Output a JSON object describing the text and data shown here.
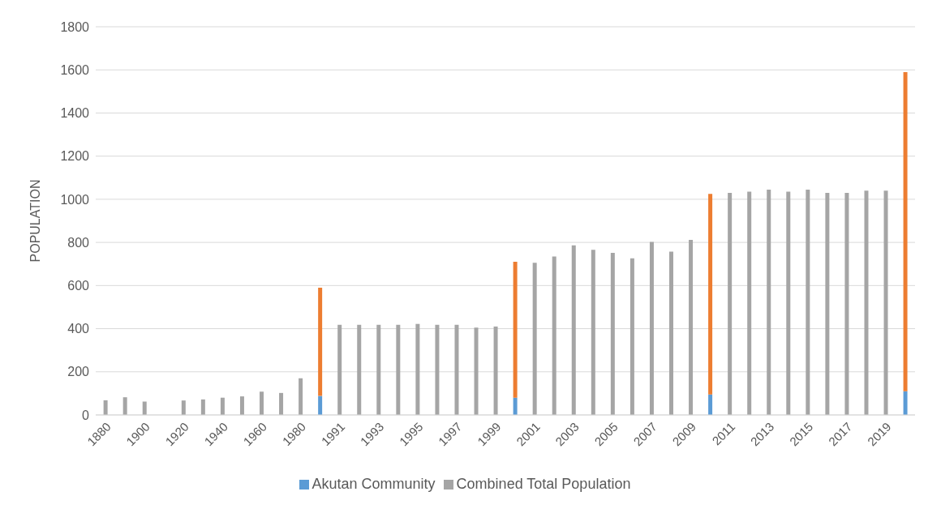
{
  "chart_data": {
    "type": "bar",
    "stacked": true,
    "ylabel": "POPULATION",
    "categories": [
      "1880",
      null,
      "1900",
      null,
      "1920",
      null,
      "1940",
      null,
      "1960",
      null,
      "1980",
      null,
      "1991",
      null,
      "1993",
      null,
      "1995",
      null,
      "1997",
      null,
      "1999",
      null,
      "2001",
      null,
      "2003",
      null,
      "2005",
      null,
      "2007",
      null,
      "2009",
      null,
      "2011",
      null,
      "2013",
      null,
      "2015",
      null,
      "2017",
      null,
      "2019",
      null
    ],
    "series": [
      {
        "name": "Akutan Community",
        "color": "#5b9bd5",
        "values": [
          null,
          null,
          null,
          null,
          null,
          null,
          null,
          null,
          null,
          null,
          null,
          88,
          null,
          null,
          null,
          null,
          null,
          null,
          null,
          null,
          null,
          80,
          null,
          null,
          null,
          null,
          null,
          null,
          null,
          null,
          null,
          95,
          null,
          null,
          null,
          null,
          null,
          null,
          null,
          null,
          null,
          110
        ]
      },
      {
        "color": "#ed7d31",
        "values": [
          null,
          null,
          null,
          null,
          null,
          null,
          null,
          null,
          null,
          null,
          null,
          502,
          null,
          null,
          null,
          null,
          null,
          null,
          null,
          null,
          null,
          630,
          null,
          null,
          null,
          null,
          null,
          null,
          null,
          null,
          null,
          930,
          null,
          null,
          null,
          null,
          null,
          null,
          null,
          null,
          null,
          1480
        ]
      },
      {
        "name": "Combined Total Population",
        "color": "#a5a5a5",
        "values": [
          68,
          82,
          62,
          null,
          67,
          72,
          80,
          86,
          108,
          102,
          170,
          null,
          418,
          418,
          418,
          418,
          422,
          418,
          418,
          405,
          410,
          null,
          706,
          735,
          786,
          766,
          752,
          726,
          802,
          757,
          812,
          null,
          1030,
          1035,
          1045,
          1035,
          1045,
          1030,
          1030,
          1040,
          1040,
          null
        ]
      }
    ],
    "ylim": [
      0,
      1800
    ],
    "yticks": [
      0,
      200,
      400,
      600,
      800,
      1000,
      1200,
      1400,
      1600,
      1800
    ],
    "grid": "y",
    "legend": "bottom"
  }
}
